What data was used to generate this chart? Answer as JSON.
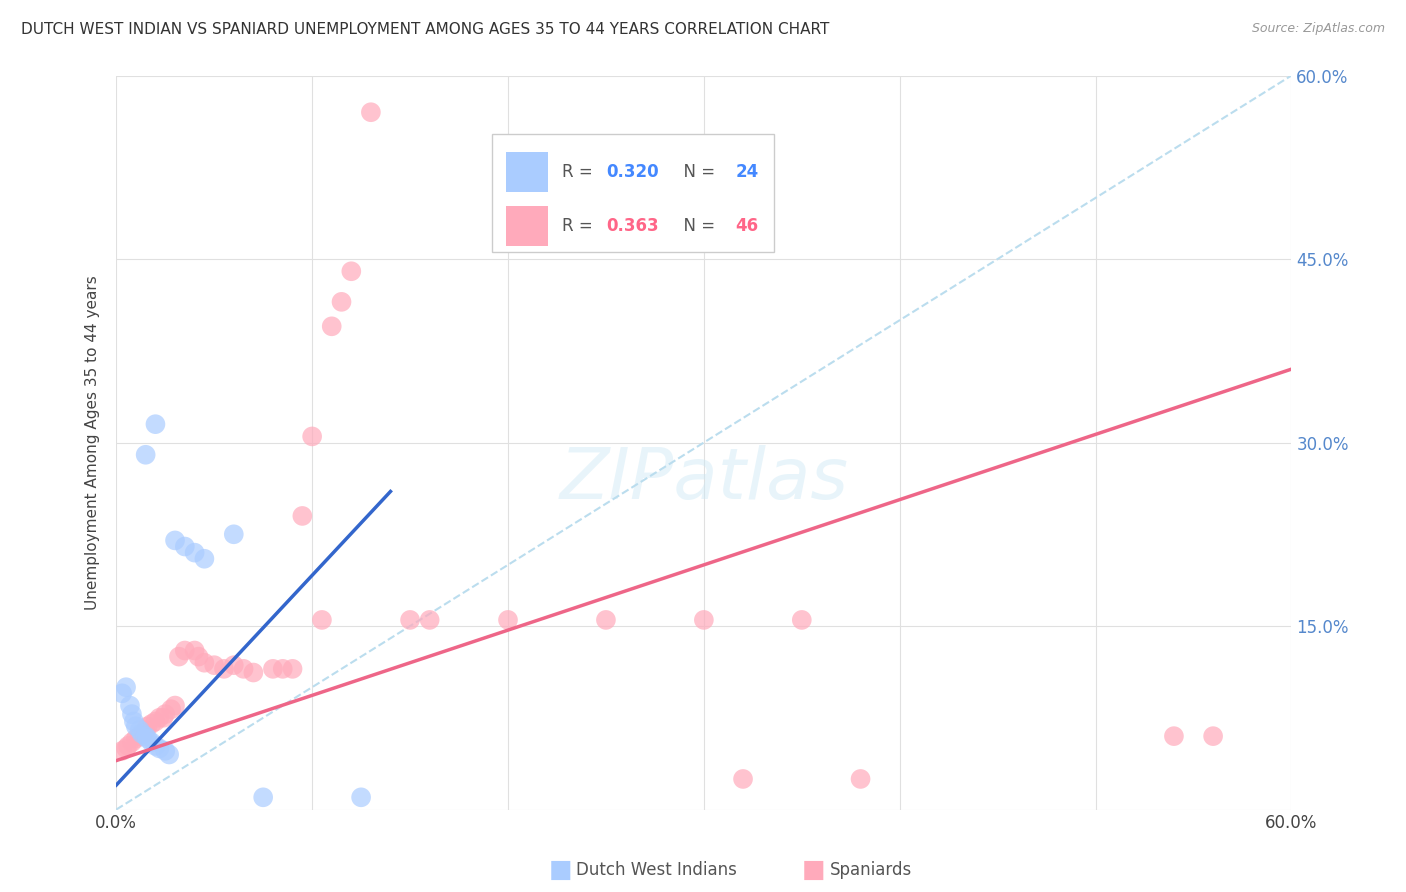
{
  "title": "DUTCH WEST INDIAN VS SPANIARD UNEMPLOYMENT AMONG AGES 35 TO 44 YEARS CORRELATION CHART",
  "source": "Source: ZipAtlas.com",
  "ylabel": "Unemployment Among Ages 35 to 44 years",
  "xlim": [
    0.0,
    0.6
  ],
  "ylim": [
    0.0,
    0.6
  ],
  "xtick_positions": [
    0.0,
    0.1,
    0.2,
    0.3,
    0.4,
    0.5,
    0.6
  ],
  "xtick_labels": [
    "0.0%",
    "",
    "",
    "",
    "",
    "",
    "60.0%"
  ],
  "ytick_positions": [
    0.0,
    0.15,
    0.3,
    0.45,
    0.6
  ],
  "ytick_labels_right": [
    "",
    "15.0%",
    "30.0%",
    "45.0%",
    "60.0%"
  ],
  "watermark_text": "ZIPatlas",
  "dutch_color": "#aaccff",
  "spanish_color": "#ffaabb",
  "dutch_line_color": "#3366cc",
  "spanish_line_color": "#ee6688",
  "diagonal_color": "#bbddee",
  "dutch_R": "0.320",
  "dutch_N": "24",
  "spanish_R": "0.363",
  "spanish_N": "46",
  "dutch_legend_color": "#aaccff",
  "spanish_legend_color": "#ffaabb",
  "dutch_points": [
    [
      0.003,
      0.095
    ],
    [
      0.005,
      0.1
    ],
    [
      0.007,
      0.085
    ],
    [
      0.008,
      0.078
    ],
    [
      0.009,
      0.072
    ],
    [
      0.01,
      0.068
    ],
    [
      0.012,
      0.065
    ],
    [
      0.013,
      0.062
    ],
    [
      0.015,
      0.06
    ],
    [
      0.016,
      0.058
    ],
    [
      0.018,
      0.055
    ],
    [
      0.02,
      0.052
    ],
    [
      0.022,
      0.05
    ],
    [
      0.025,
      0.048
    ],
    [
      0.027,
      0.045
    ],
    [
      0.03,
      0.22
    ],
    [
      0.035,
      0.215
    ],
    [
      0.04,
      0.21
    ],
    [
      0.045,
      0.205
    ],
    [
      0.015,
      0.29
    ],
    [
      0.02,
      0.315
    ],
    [
      0.06,
      0.225
    ],
    [
      0.075,
      0.01
    ],
    [
      0.125,
      0.01
    ]
  ],
  "spanish_points": [
    [
      0.003,
      0.048
    ],
    [
      0.005,
      0.05
    ],
    [
      0.006,
      0.052
    ],
    [
      0.008,
      0.055
    ],
    [
      0.01,
      0.058
    ],
    [
      0.012,
      0.06
    ],
    [
      0.014,
      0.062
    ],
    [
      0.015,
      0.065
    ],
    [
      0.016,
      0.068
    ],
    [
      0.018,
      0.07
    ],
    [
      0.02,
      0.072
    ],
    [
      0.022,
      0.075
    ],
    [
      0.024,
      0.075
    ],
    [
      0.025,
      0.078
    ],
    [
      0.028,
      0.082
    ],
    [
      0.03,
      0.085
    ],
    [
      0.032,
      0.125
    ],
    [
      0.035,
      0.13
    ],
    [
      0.04,
      0.13
    ],
    [
      0.042,
      0.125
    ],
    [
      0.045,
      0.12
    ],
    [
      0.05,
      0.118
    ],
    [
      0.055,
      0.115
    ],
    [
      0.06,
      0.118
    ],
    [
      0.065,
      0.115
    ],
    [
      0.07,
      0.112
    ],
    [
      0.08,
      0.115
    ],
    [
      0.085,
      0.115
    ],
    [
      0.09,
      0.115
    ],
    [
      0.095,
      0.24
    ],
    [
      0.1,
      0.305
    ],
    [
      0.105,
      0.155
    ],
    [
      0.11,
      0.395
    ],
    [
      0.115,
      0.415
    ],
    [
      0.12,
      0.44
    ],
    [
      0.13,
      0.57
    ],
    [
      0.15,
      0.155
    ],
    [
      0.16,
      0.155
    ],
    [
      0.2,
      0.155
    ],
    [
      0.25,
      0.155
    ],
    [
      0.3,
      0.155
    ],
    [
      0.35,
      0.155
    ],
    [
      0.32,
      0.025
    ],
    [
      0.38,
      0.025
    ],
    [
      0.54,
      0.06
    ],
    [
      0.56,
      0.06
    ]
  ],
  "dutch_line": {
    "x0": 0.0,
    "y0": 0.02,
    "x1": 0.14,
    "y1": 0.26
  },
  "spanish_line": {
    "x0": 0.0,
    "y0": 0.04,
    "x1": 0.6,
    "y1": 0.36
  }
}
